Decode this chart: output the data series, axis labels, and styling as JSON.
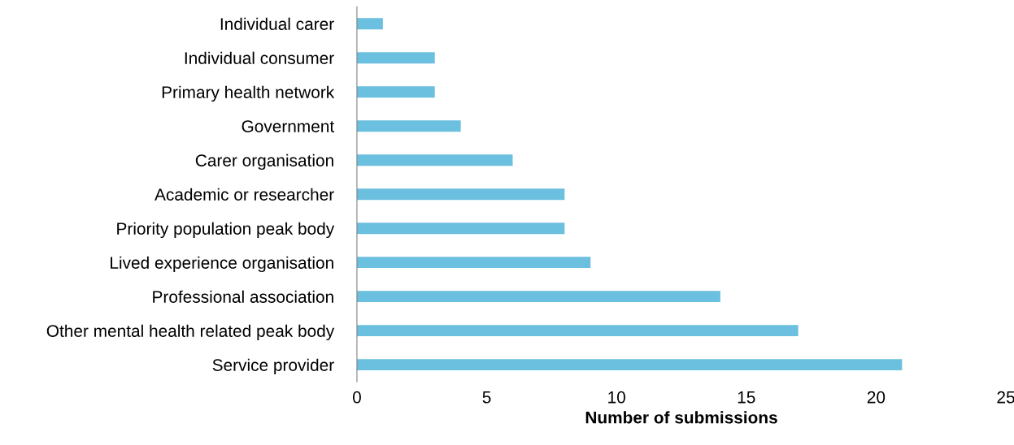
{
  "chart_data": {
    "type": "bar",
    "orientation": "horizontal",
    "xlabel": "Number of submissions",
    "categories": [
      "Individual carer",
      "Individual consumer",
      "Primary health network",
      "Government",
      "Carer organisation",
      "Academic or researcher",
      "Priority population peak body",
      "Lived experience organisation",
      "Professional association",
      "Other mental health related peak body",
      "Service provider"
    ],
    "values": [
      1,
      3,
      3,
      4,
      6,
      8,
      8,
      9,
      14,
      17,
      21
    ],
    "color": "#6bbfdf",
    "xlim": [
      0,
      25
    ],
    "xticks": [
      0,
      5,
      10,
      15,
      20,
      25
    ],
    "grid": false,
    "legend": false
  }
}
